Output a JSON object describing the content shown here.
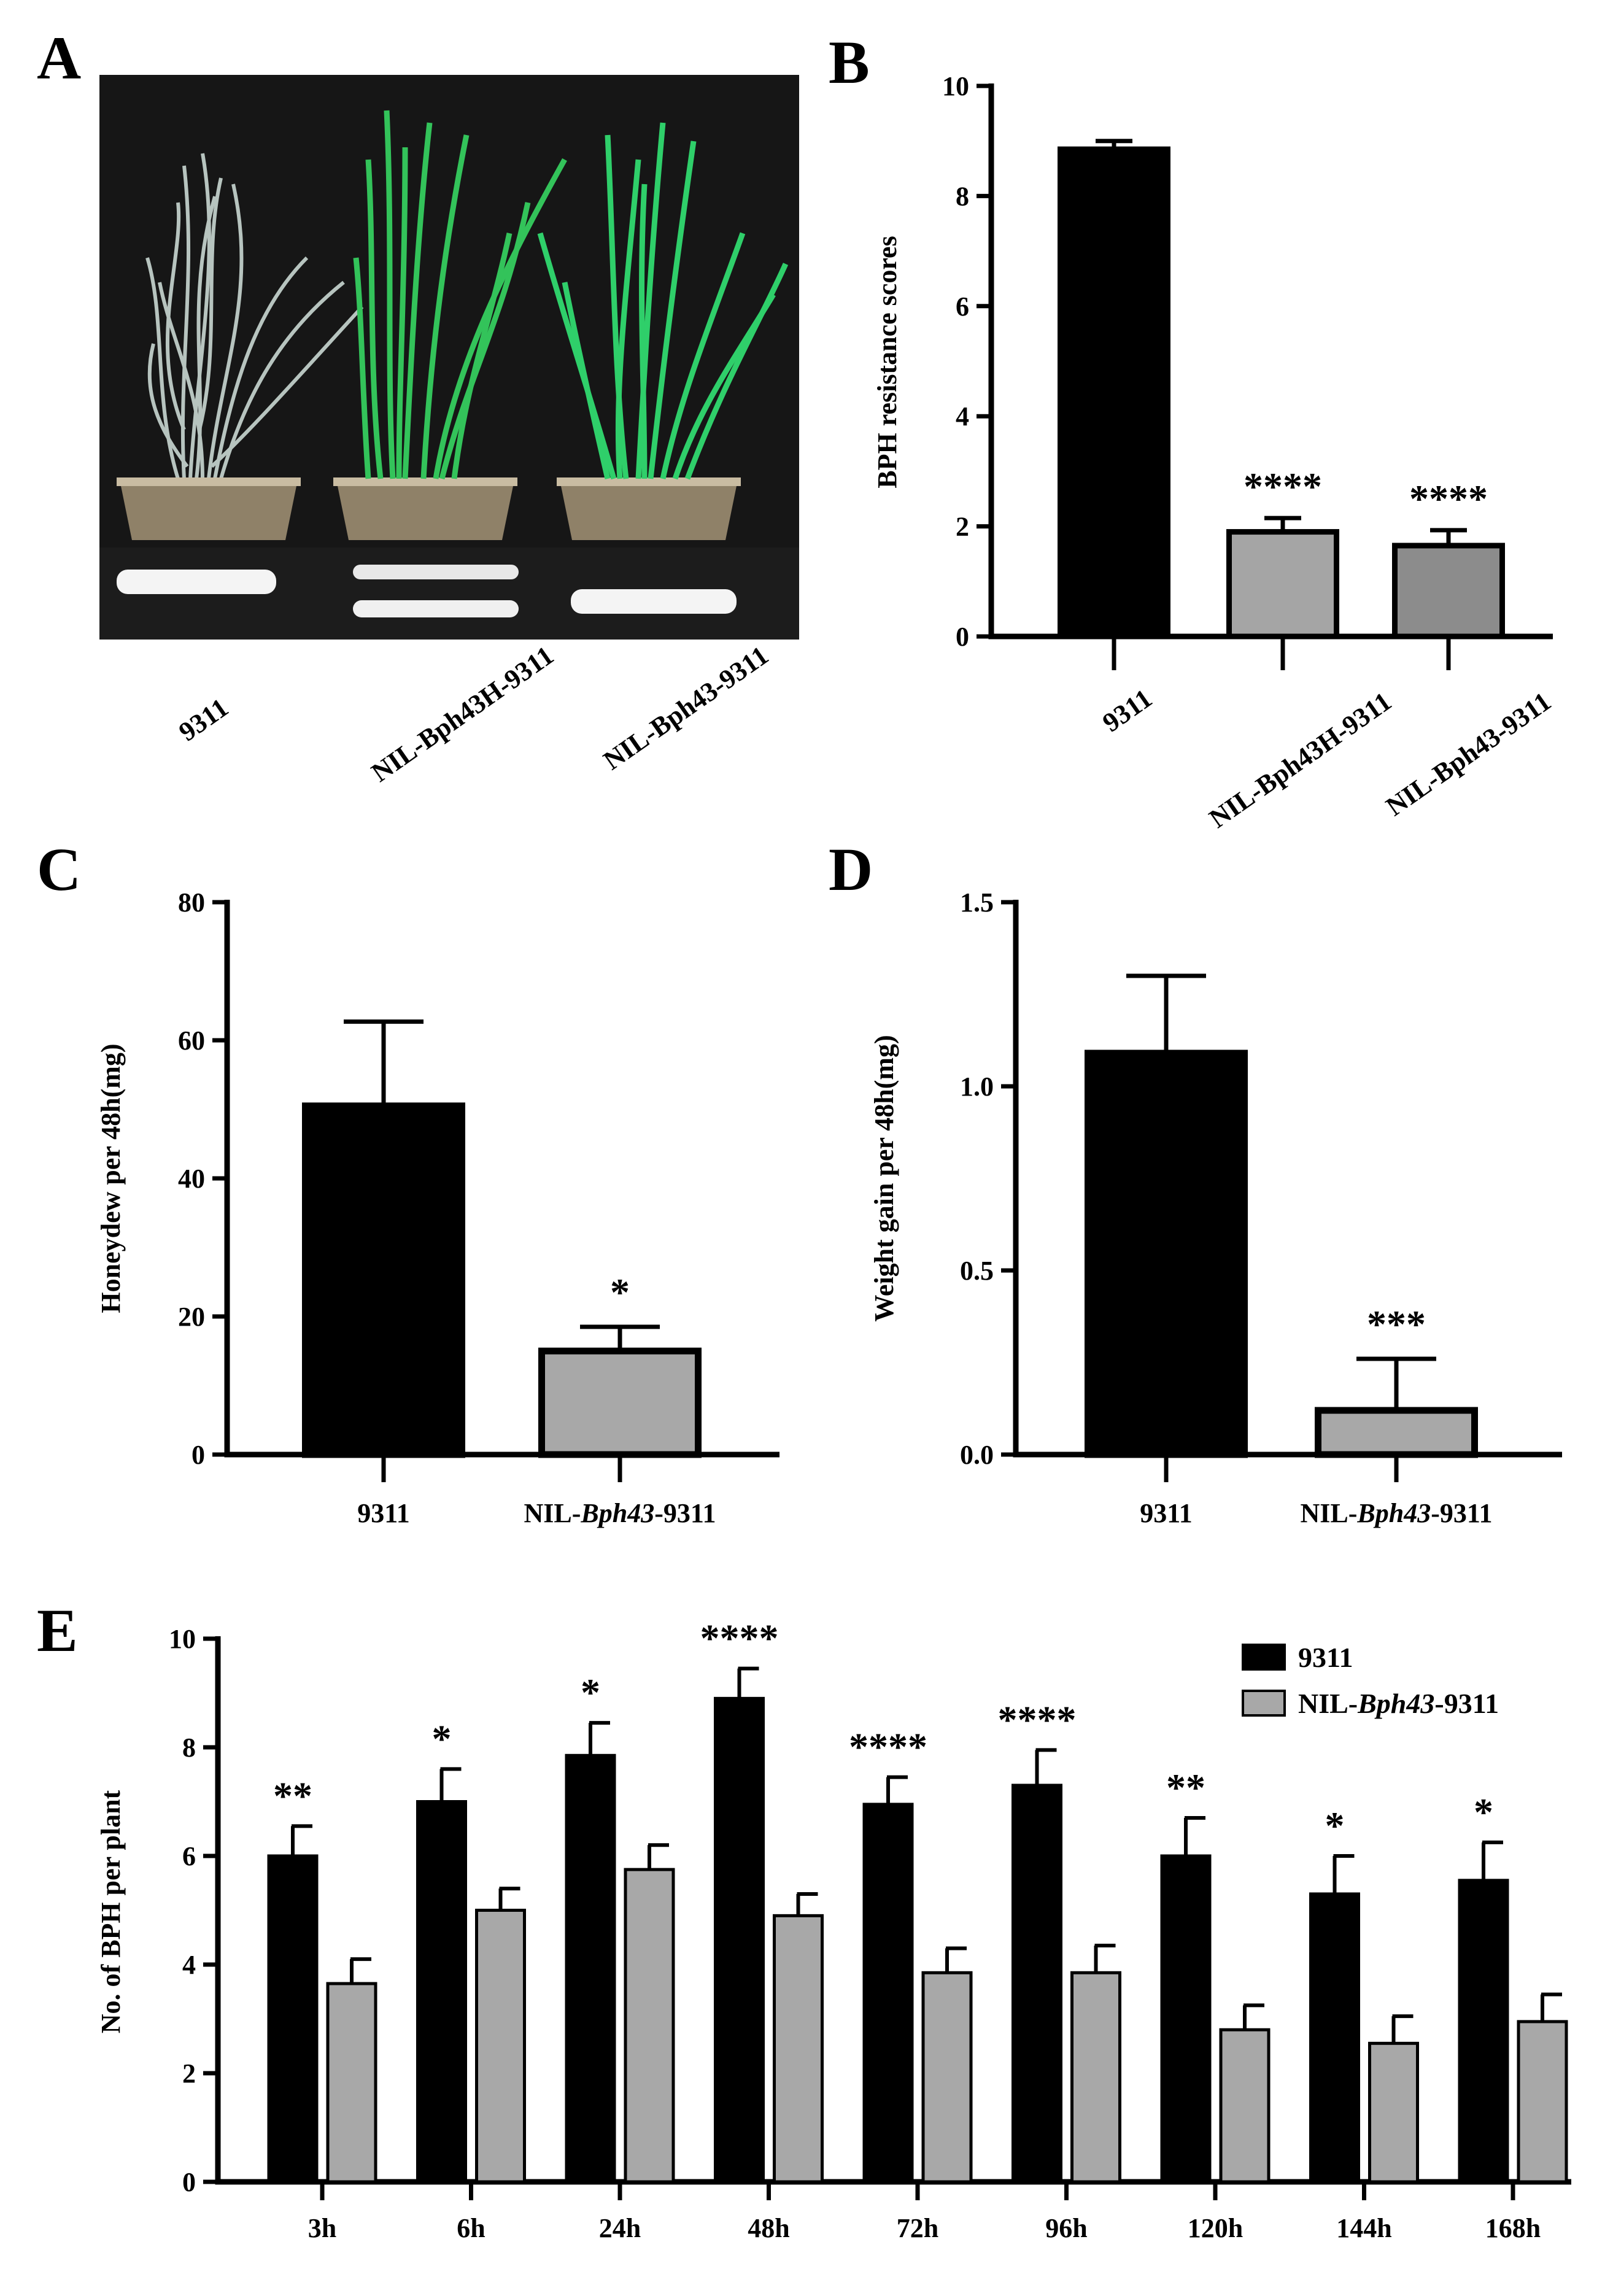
{
  "colors": {
    "bar_9311": "#000000",
    "bar_nil_bph43h": "#a5a5a5",
    "bar_nil_bph43": "#8c8c8c",
    "bar_gray": "#a8a8a8",
    "plant_dead": "#b7c4bf",
    "plant_green": "#33c35a",
    "photo_bg": "#161616",
    "gel_band": "#f4f4f4",
    "pot": "#8f8168"
  },
  "panel_a": {
    "letter": "A",
    "photo": {
      "description_icon": "rice-plant-photo",
      "gel_icon": "pcr-gel-image"
    },
    "labels": [
      "9311",
      "NIL-Bph43H-9311",
      "NIL-Bph43-9311"
    ]
  },
  "chart_data": [
    {
      "panel": "B",
      "type": "bar",
      "title": "",
      "ylabel": "BPH  resistance scores",
      "xlabel": "",
      "ylim": [
        0,
        10
      ],
      "yticks": [
        "0",
        "2",
        "4",
        "6",
        "8",
        "10"
      ],
      "categories": [
        "9311",
        "NIL-Bph43H-9311",
        "NIL-Bph43-9311"
      ],
      "values": [
        8.85,
        1.9,
        1.65
      ],
      "errors": [
        0.15,
        0.25,
        0.28
      ],
      "significance": [
        "",
        "****",
        "****"
      ]
    },
    {
      "panel": "C",
      "type": "bar",
      "title": "",
      "ylabel": "Honeydew  per 48h(mg)",
      "xlabel": "",
      "ylim": [
        0,
        80
      ],
      "yticks": [
        "0",
        "20",
        "40",
        "60",
        "80"
      ],
      "categories": [
        "9311",
        "NIL-Bph43-9311"
      ],
      "category_parts": [
        [
          "9311"
        ],
        [
          "NIL-",
          "Bph43",
          "-9311"
        ]
      ],
      "values": [
        50.5,
        15.0
      ],
      "errors": [
        12.2,
        3.5
      ],
      "significance": [
        "",
        "*"
      ]
    },
    {
      "panel": "D",
      "type": "bar",
      "title": "",
      "ylabel": "Weight gain per 48h(mg)",
      "xlabel": "",
      "ylim": [
        0,
        1.5
      ],
      "yticks": [
        "0.0",
        "0.5",
        "1.0",
        "1.5"
      ],
      "categories": [
        "9311",
        "NIL-Bph43-9311"
      ],
      "category_parts": [
        [
          "9311"
        ],
        [
          "NIL-",
          "Bph43",
          "-9311"
        ]
      ],
      "values": [
        1.09,
        0.12
      ],
      "errors": [
        0.21,
        0.14
      ],
      "significance": [
        "",
        "***"
      ]
    },
    {
      "panel": "E",
      "type": "bar",
      "title": "",
      "ylabel": "No. of BPH per plant",
      "xlabel": "",
      "ylim": [
        0,
        10
      ],
      "yticks": [
        "0",
        "2",
        "4",
        "6",
        "8",
        "10"
      ],
      "categories": [
        "3h",
        "6h",
        "24h",
        "48h",
        "72h",
        "96h",
        "120h",
        "144h",
        "168h"
      ],
      "series": [
        {
          "name": "9311",
          "values": [
            6.0,
            7.0,
            7.85,
            8.9,
            6.95,
            7.3,
            6.0,
            5.3,
            5.55
          ],
          "errors": [
            0.55,
            0.6,
            0.6,
            0.55,
            0.5,
            0.65,
            0.7,
            0.7,
            0.7
          ]
        },
        {
          "name": "NIL-Bph43-9311",
          "values": [
            3.65,
            5.0,
            5.75,
            4.9,
            3.85,
            3.85,
            2.8,
            2.55,
            2.95
          ],
          "errors": [
            0.45,
            0.4,
            0.45,
            0.4,
            0.45,
            0.5,
            0.45,
            0.5,
            0.5
          ]
        }
      ],
      "significance": [
        "**",
        "*",
        "*",
        "****",
        "****",
        "****",
        "**",
        "*",
        "*"
      ],
      "legend": [
        {
          "name": "9311",
          "parts": [
            "9311"
          ]
        },
        {
          "name": "NIL-Bph43-9311",
          "parts": [
            "NIL-",
            "Bph43",
            "-9311"
          ]
        }
      ],
      "legend_position": "top-right"
    }
  ]
}
